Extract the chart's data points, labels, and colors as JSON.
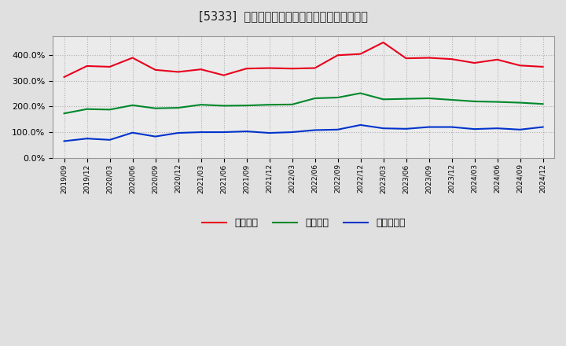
{
  "title": "[5333]  流動比率、当座比率、現預金比率の推移",
  "x_labels": [
    "2019/09",
    "2019/12",
    "2020/03",
    "2020/06",
    "2020/09",
    "2020/12",
    "2021/03",
    "2021/06",
    "2021/09",
    "2021/12",
    "2022/03",
    "2022/06",
    "2022/09",
    "2022/12",
    "2023/03",
    "2023/06",
    "2023/09",
    "2023/12",
    "2024/03",
    "2024/06",
    "2024/09",
    "2024/12"
  ],
  "ryudo": [
    315,
    358,
    355,
    390,
    343,
    335,
    345,
    322,
    348,
    350,
    348,
    350,
    400,
    405,
    450,
    388,
    390,
    385,
    370,
    383,
    360,
    355
  ],
  "toza": [
    173,
    190,
    188,
    205,
    193,
    195,
    207,
    203,
    204,
    207,
    208,
    232,
    235,
    252,
    228,
    230,
    232,
    226,
    220,
    218,
    215,
    210
  ],
  "genkin": [
    65,
    75,
    70,
    98,
    83,
    97,
    100,
    100,
    103,
    97,
    100,
    108,
    110,
    128,
    115,
    113,
    120,
    120,
    112,
    115,
    110,
    120
  ],
  "ryudo_color": "#e8001c",
  "toza_color": "#00882b",
  "genkin_color": "#0033cc",
  "background_color": "#e0e0e0",
  "plot_bg_color": "#ebebeb",
  "grid_color": "#b0b0b0",
  "ylim_min": 0,
  "ylim_max": 475,
  "ytick_values": [
    0,
    100,
    200,
    300,
    400
  ],
  "legend_labels": [
    "流動比率",
    "当座比率",
    "現預金比率"
  ]
}
